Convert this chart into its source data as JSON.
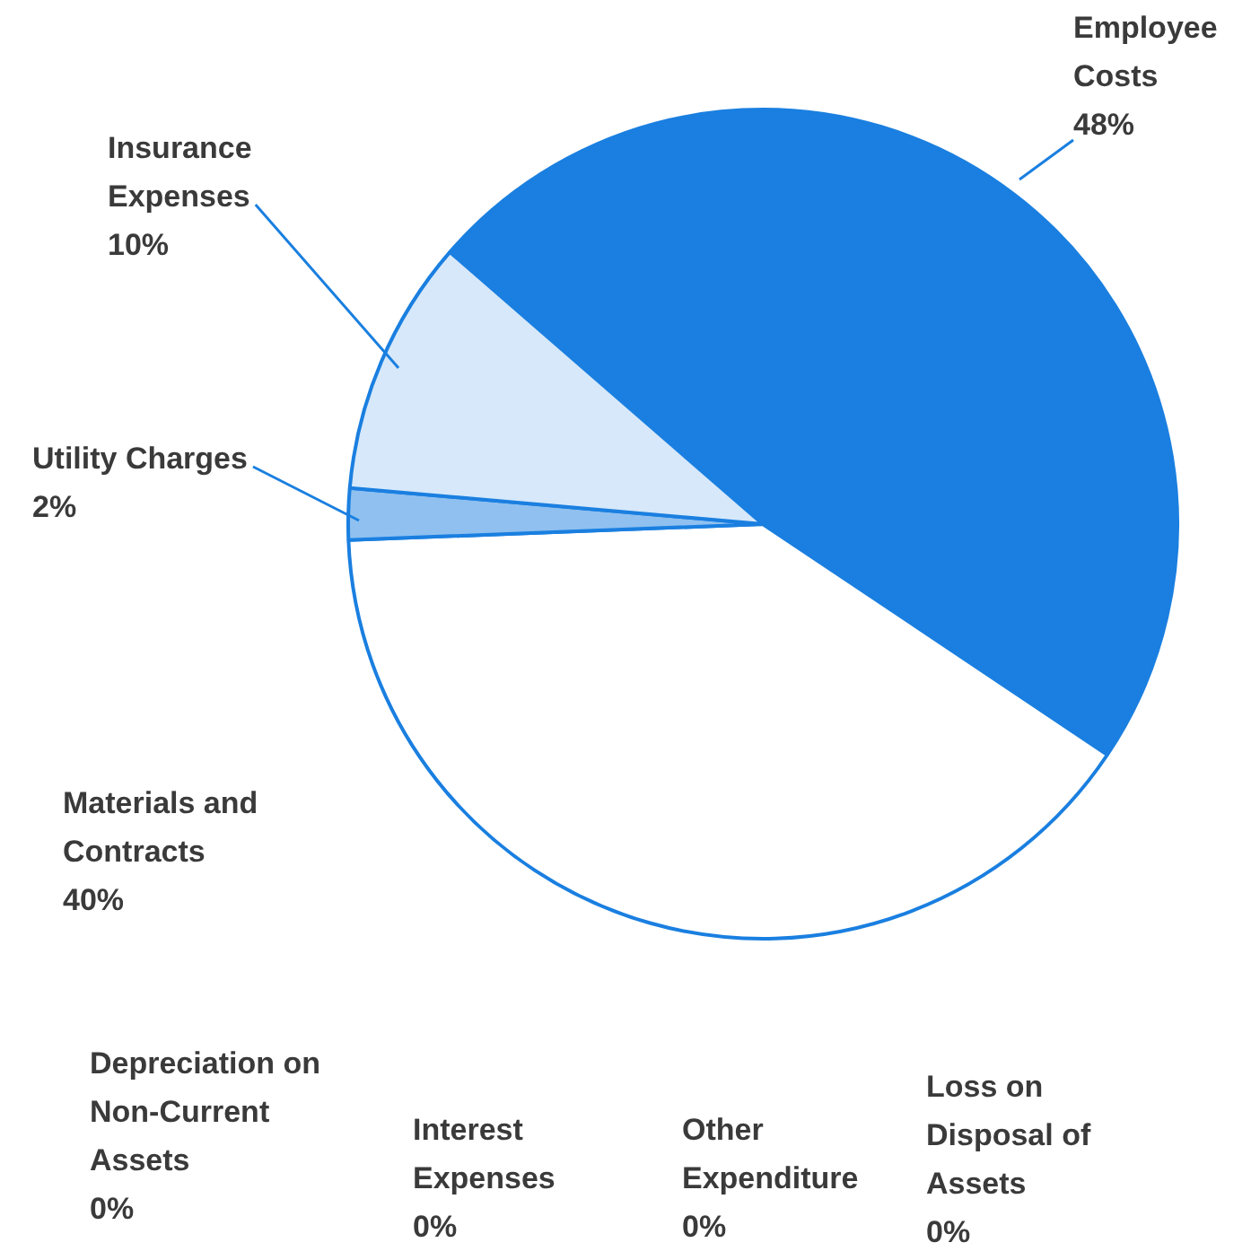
{
  "chart_data": {
    "type": "pie",
    "categories": [
      "Employee Costs",
      "Materials and Contracts",
      "Utility Charges",
      "Insurance Expenses",
      "Depreciation on Non-Current Assets",
      "Interest Expenses",
      "Other Expenditure",
      "Loss on Disposal of Assets"
    ],
    "values": [
      48,
      40,
      2,
      10,
      0,
      0,
      0,
      0
    ],
    "value_labels": [
      "48%",
      "40%",
      "2%",
      "10%",
      "0%",
      "0%",
      "0%",
      "0%"
    ],
    "colors": [
      "#1a7fe0",
      "#ffffff",
      "#8fc0f0",
      "#d6e8fa",
      "#1a7fe0",
      "#1a7fe0",
      "#1a7fe0",
      "#1a7fe0"
    ],
    "legend": false
  }
}
